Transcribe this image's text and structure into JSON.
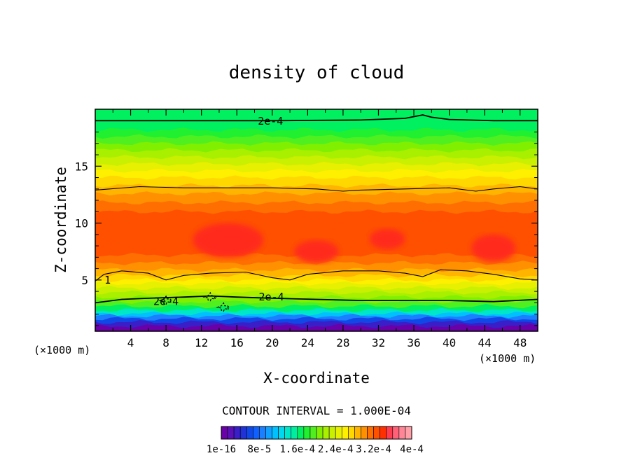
{
  "chart_data": {
    "type": "heatmap",
    "title": "density of cloud",
    "xlabel": "X-coordinate",
    "ylabel": "Z-coordinate",
    "x_unit": "(×1000 m)",
    "xlim": [
      0,
      50
    ],
    "ylim": [
      0.5,
      20
    ],
    "x_ticks": [
      4,
      8,
      12,
      16,
      20,
      24,
      28,
      32,
      36,
      40,
      44,
      48
    ],
    "y_ticks": [
      5,
      10,
      15
    ],
    "contour_interval_text": "CONTOUR INTERVAL = 1.000E-04",
    "contour_labels": [
      "2e-4",
      "2e-4",
      "1",
      "2e-4"
    ],
    "colorbar": {
      "labels": [
        "1e-16",
        "8e-5",
        "1.6e-4",
        "2.4e-4",
        "3.2e-4",
        "4e-4"
      ],
      "colors": [
        "#6a00a8",
        "#5a10b8",
        "#3a1ec8",
        "#2032d8",
        "#1048e8",
        "#1060ff",
        "#1a80ff",
        "#10a0ff",
        "#00c0ff",
        "#00d8f0",
        "#00e6c8",
        "#00eea0",
        "#00f060",
        "#20f030",
        "#50f020",
        "#80f000",
        "#a8f000",
        "#c8f000",
        "#e6f000",
        "#fff000",
        "#ffd800",
        "#ffb400",
        "#ff9000",
        "#ff6e00",
        "#ff5000",
        "#ff3000",
        "#ff3c50",
        "#ff6278",
        "#ff8696",
        "#ffa0a8"
      ]
    },
    "bands": [
      {
        "z": 0.5,
        "color": "#6a00a8"
      },
      {
        "z": 0.95,
        "color": "#3a1ec8"
      },
      {
        "z": 1.3,
        "color": "#1048e8"
      },
      {
        "z": 1.6,
        "color": "#1a80ff"
      },
      {
        "z": 1.85,
        "color": "#00c0ff"
      },
      {
        "z": 2.05,
        "color": "#00e6c8"
      },
      {
        "z": 2.35,
        "color": "#00f060"
      },
      {
        "z": 2.7,
        "color": "#50f020"
      },
      {
        "z": 3.1,
        "color": "#80f000"
      },
      {
        "z": 3.5,
        "color": "#a8f000"
      },
      {
        "z": 3.9,
        "color": "#c8f000"
      },
      {
        "z": 4.3,
        "color": "#e6f000"
      },
      {
        "z": 4.7,
        "color": "#fff000"
      },
      {
        "z": 5.0,
        "color": "#ffd800"
      },
      {
        "z": 5.4,
        "color": "#ffb400"
      },
      {
        "z": 5.9,
        "color": "#ff9000"
      },
      {
        "z": 6.5,
        "color": "#ff6e00"
      },
      {
        "z": 7.2,
        "color": "#ff5000"
      },
      {
        "z": 11.0,
        "color": "#ff6e00"
      },
      {
        "z": 11.8,
        "color": "#ff9000"
      },
      {
        "z": 12.6,
        "color": "#ffb400"
      },
      {
        "z": 13.3,
        "color": "#ffd800"
      },
      {
        "z": 14.0,
        "color": "#fff000"
      },
      {
        "z": 14.6,
        "color": "#e6f000"
      },
      {
        "z": 15.2,
        "color": "#c8f000"
      },
      {
        "z": 15.8,
        "color": "#a8f000"
      },
      {
        "z": 16.4,
        "color": "#80f000"
      },
      {
        "z": 17.0,
        "color": "#50f020"
      },
      {
        "z": 17.6,
        "color": "#20f030"
      },
      {
        "z": 18.2,
        "color": "#00f060"
      }
    ],
    "contours": [
      {
        "name": "upper",
        "points": [
          [
            0,
            19.0
          ],
          [
            10,
            19.0
          ],
          [
            20,
            19.0
          ],
          [
            30,
            19.05
          ],
          [
            35,
            19.2
          ],
          [
            37,
            19.5
          ],
          [
            38,
            19.3
          ],
          [
            40,
            19.1
          ],
          [
            45,
            19.0
          ],
          [
            50,
            19.0
          ]
        ]
      },
      {
        "name": "mid",
        "points": [
          [
            0,
            12.9
          ],
          [
            5,
            13.2
          ],
          [
            10,
            13.1
          ],
          [
            15,
            13.1
          ],
          [
            20,
            13.1
          ],
          [
            25,
            13.0
          ],
          [
            28,
            12.8
          ],
          [
            30,
            12.9
          ],
          [
            35,
            13.0
          ],
          [
            40,
            13.1
          ],
          [
            43,
            12.8
          ],
          [
            45,
            13.0
          ],
          [
            48,
            13.2
          ],
          [
            50,
            13.0
          ]
        ]
      },
      {
        "name": "lower",
        "points": [
          [
            0,
            4.9
          ],
          [
            1,
            5.5
          ],
          [
            3,
            5.8
          ],
          [
            6,
            5.6
          ],
          [
            8,
            5.0
          ],
          [
            10,
            5.4
          ],
          [
            13,
            5.6
          ],
          [
            17,
            5.7
          ],
          [
            20,
            5.2
          ],
          [
            22,
            5.0
          ],
          [
            24,
            5.5
          ],
          [
            28,
            5.8
          ],
          [
            32,
            5.8
          ],
          [
            35,
            5.6
          ],
          [
            37,
            5.3
          ],
          [
            39,
            5.9
          ],
          [
            42,
            5.8
          ],
          [
            45,
            5.5
          ],
          [
            48,
            5.1
          ],
          [
            50,
            5.0
          ]
        ]
      },
      {
        "name": "base",
        "points": [
          [
            0,
            3.0
          ],
          [
            3,
            3.3
          ],
          [
            6,
            3.4
          ],
          [
            10,
            3.5
          ],
          [
            13,
            3.6
          ],
          [
            16,
            3.5
          ],
          [
            20,
            3.4
          ],
          [
            25,
            3.3
          ],
          [
            30,
            3.2
          ],
          [
            35,
            3.2
          ],
          [
            40,
            3.2
          ],
          [
            45,
            3.1
          ],
          [
            50,
            3.3
          ]
        ]
      }
    ],
    "hot_spots": [
      {
        "x": 15,
        "z": 8.5,
        "rx": 4,
        "rz": 1.5
      },
      {
        "x": 25,
        "z": 7.5,
        "rx": 2.5,
        "rz": 1.0
      },
      {
        "x": 45,
        "z": 7.8,
        "rx": 2.5,
        "rz": 1.2
      },
      {
        "x": 33,
        "z": 8.6,
        "rx": 2.0,
        "rz": 0.9
      }
    ],
    "patches": [
      {
        "x": 8,
        "z": 3.2
      },
      {
        "x": 13,
        "z": 3.5
      },
      {
        "x": 14.5,
        "z": 2.6
      }
    ]
  }
}
